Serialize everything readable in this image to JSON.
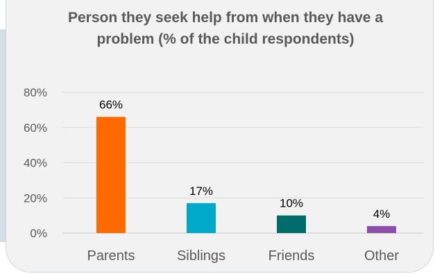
{
  "chart_data": {
    "type": "bar",
    "title": "Person they seek help from when they have a problem (% of the child respondents)",
    "categories": [
      "Parents",
      "Siblings",
      "Friends",
      "Other"
    ],
    "values": [
      66,
      17,
      10,
      4
    ],
    "value_labels": [
      "66%",
      "17%",
      "10%",
      "4%"
    ],
    "colors": [
      "#ff6a00",
      "#00a8c9",
      "#006b6b",
      "#8e4fa8"
    ],
    "ylim": [
      0,
      80
    ],
    "yticks": [
      0,
      20,
      40,
      60,
      80
    ],
    "ytick_labels": [
      "0%",
      "20%",
      "40%",
      "60%",
      "80%"
    ],
    "xlabel": "",
    "ylabel": "",
    "grid": true,
    "legend": "none"
  }
}
